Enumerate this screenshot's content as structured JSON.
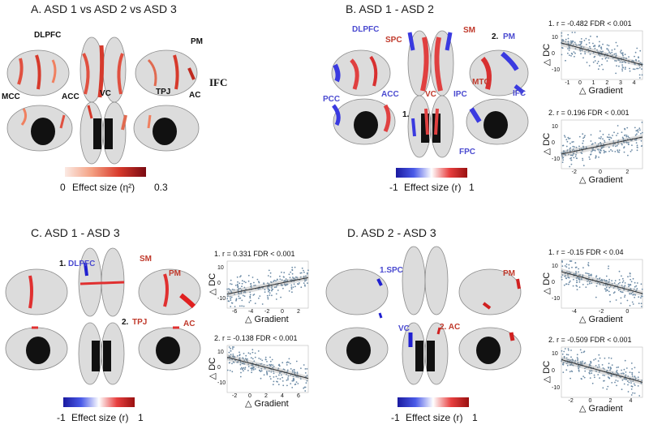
{
  "panels": {
    "A": {
      "title": "A.   ASD 1 vs ASD 2 vs ASD 3",
      "labels": {
        "dlpfc": "DLPFC",
        "pm": "PM",
        "mcc": "MCC",
        "acc": "ACC",
        "vc": "VC",
        "tpj": "TPJ",
        "ac": "AC",
        "ifc": "IFC"
      },
      "colorbar": {
        "min": "0",
        "max": "0.3",
        "label": "Effect size (η²)",
        "colors": [
          "#fbeae4",
          "#f4a082",
          "#d83a2c",
          "#7a0a12"
        ]
      }
    },
    "B": {
      "title": "B.   ASD 1 - ASD 2",
      "labels": {
        "dlpfc": "DLPFC",
        "spc": "SPC",
        "sm": "SM",
        "pm_num": "2.",
        "pm": "PM",
        "pcc": "PCC",
        "acc": "ACC",
        "vc": "VC",
        "ipc": "IPC",
        "mtc": "MTC",
        "ifc": "IFC",
        "fpc": "FPC",
        "num1": "1."
      },
      "colorbar": {
        "min": "-1",
        "max": "1",
        "label": "Effect size (r)",
        "colors": [
          "#1a1aa0",
          "#4a5ae8",
          "#ffffff",
          "#e84040",
          "#9a1010"
        ]
      },
      "scatters": [
        {
          "head_num": "1.",
          "r": "r = -0.482",
          "fdr": "FDR < 0.001",
          "ylabel": "△ DC",
          "xlabel": "△ Gradient",
          "slope": "neg",
          "xticks": [
            "-1",
            "0",
            "1",
            "2",
            "3",
            "4"
          ],
          "yticks": [
            "10",
            "0",
            "-10"
          ]
        },
        {
          "head_num": "2.",
          "r": "r = 0.196",
          "fdr": "FDR < 0.001",
          "ylabel": "△ DC",
          "xlabel": "△ Gradient",
          "slope": "pos",
          "xticks": [
            "-2",
            "0",
            "2"
          ],
          "yticks": [
            "10",
            "0",
            "-10"
          ]
        }
      ]
    },
    "C": {
      "title": "C.      ASD 1 - ASD 3",
      "labels": {
        "num1": "1.",
        "dlpfc": "DLPFC",
        "sm": "SM",
        "pm": "PM",
        "num2": "2.",
        "tpj": "TPJ",
        "ac": "AC"
      },
      "colorbar": {
        "min": "-1",
        "max": "1",
        "label": "Effect size (r)",
        "colors": [
          "#1a1aa0",
          "#4a5ae8",
          "#ffffff",
          "#e84040",
          "#9a1010"
        ]
      },
      "scatters": [
        {
          "head_num": "1.",
          "r": "r = 0.331",
          "fdr": "FDR < 0.001",
          "ylabel": "△ DC",
          "xlabel": "△ Gradient",
          "slope": "pos",
          "xticks": [
            "-6",
            "-4",
            "-2",
            "0",
            "2"
          ],
          "yticks": [
            "10",
            "0",
            "-10"
          ]
        },
        {
          "head_num": "2.",
          "r": "r = -0.138",
          "fdr": "FDR < 0.001",
          "ylabel": "△ DC",
          "xlabel": "△ Gradient",
          "slope": "neg",
          "xticks": [
            "-2",
            "0",
            "2",
            "4",
            "6"
          ],
          "yticks": [
            "10",
            "0",
            "-10"
          ]
        }
      ]
    },
    "D": {
      "title": "D.     ASD 2 - ASD 3",
      "labels": {
        "spc": "1.SPC",
        "pm": "PM",
        "vc": "VC",
        "ac": "2. AC"
      },
      "colorbar": {
        "min": "-1",
        "max": "1",
        "label": "Effect size (r)",
        "colors": [
          "#1a1aa0",
          "#4a5ae8",
          "#ffffff",
          "#e84040",
          "#9a1010"
        ]
      },
      "scatters": [
        {
          "head_num": "1.",
          "r": "r = -0.15",
          "fdr": "FDR < 0.04",
          "ylabel": "△ DC",
          "xlabel": "△ Gradient",
          "slope": "neg",
          "xticks": [
            "-4",
            "-2",
            "0"
          ],
          "yticks": [
            "10",
            "0",
            "-10"
          ]
        },
        {
          "head_num": "2.",
          "r": "r = -0.509",
          "fdr": "FDR < 0.001",
          "ylabel": "△ DC",
          "xlabel": "△ Gradient",
          "slope": "neg",
          "xticks": [
            "-2",
            "0",
            "2",
            "4"
          ],
          "yticks": [
            "10",
            "0",
            "-10"
          ]
        }
      ]
    }
  }
}
